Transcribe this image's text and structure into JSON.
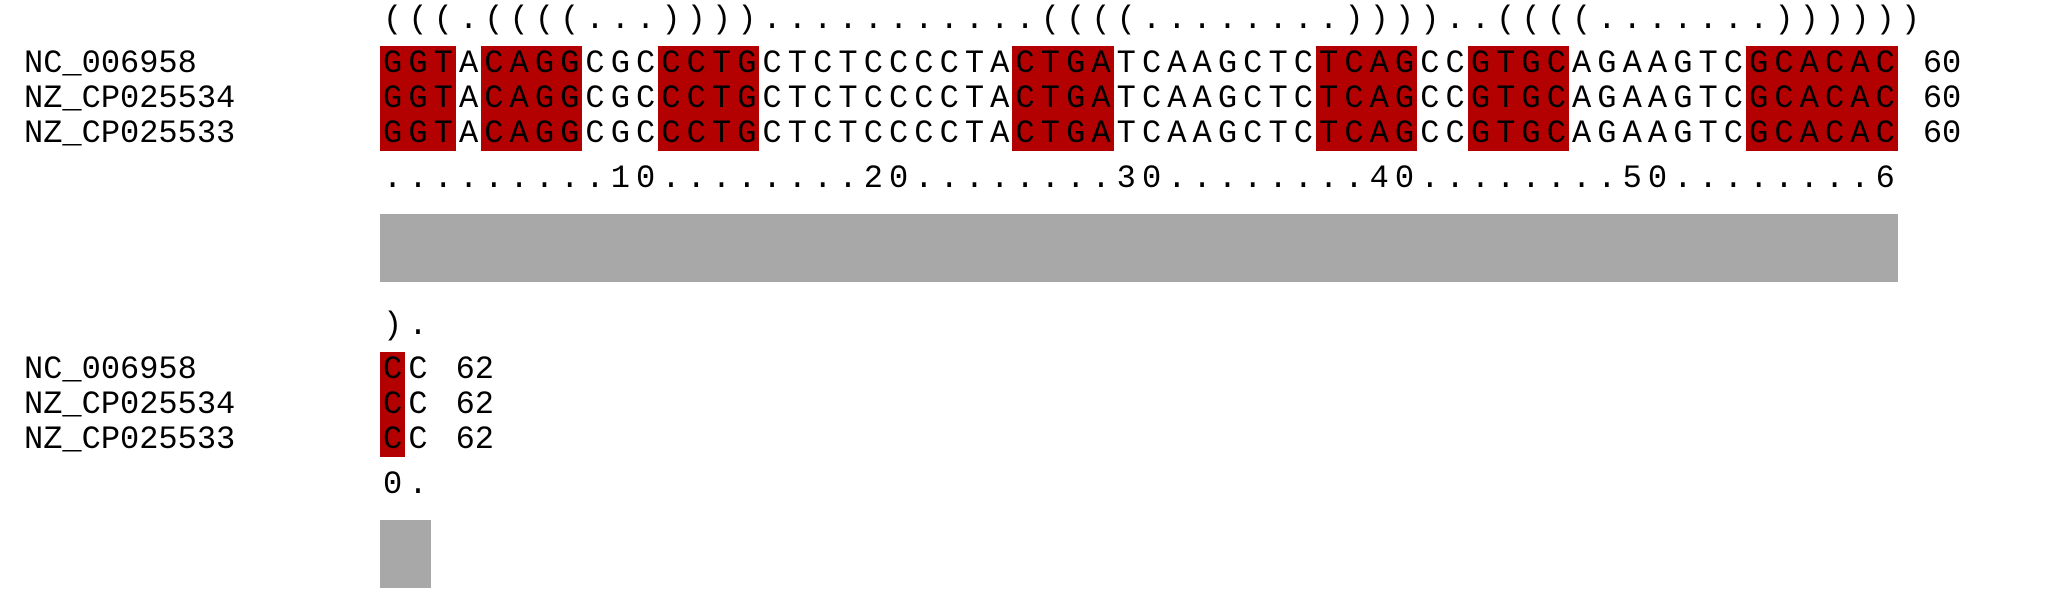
{
  "blocks": [
    {
      "structure": "(((.((((...))))...........((((........))))..((((.......))))))",
      "rows": [
        {
          "name": "NC_006958",
          "seq": "GGTACAGGCGCCCTGCTCTCCCCTACTGATCAAGCTCTCAGCCGTGCAGAAGTCGCACAC",
          "end": "60"
        },
        {
          "name": "NZ_CP025534",
          "seq": "GGTACAGGCGCCCTGCTCTCCCCTACTGATCAAGCTCTCAGCCGTGCAGAAGTCGCACAC",
          "end": "60"
        },
        {
          "name": "NZ_CP025533",
          "seq": "GGTACAGGCGCCCTGCTCTCCCCTACTGATCAAGCTCTCAGCCGTGCAGAAGTCGCACAC",
          "end": "60"
        }
      ],
      "ruler": ".........10........20........30........40........50........6",
      "highlight_ranges": [
        [
          0,
          3
        ],
        [
          4,
          8
        ],
        [
          11,
          15
        ],
        [
          25,
          29
        ],
        [
          37,
          41
        ],
        [
          43,
          47
        ],
        [
          54,
          60
        ]
      ],
      "conservation_length": 60
    },
    {
      "structure": ").",
      "rows": [
        {
          "name": "NC_006958",
          "seq": "CC",
          "end": "62"
        },
        {
          "name": "NZ_CP025534",
          "seq": "CC",
          "end": "62"
        },
        {
          "name": "NZ_CP025533",
          "seq": "CC",
          "end": "62"
        }
      ],
      "ruler": "0.",
      "highlight_ranges": [
        [
          0,
          1
        ]
      ],
      "conservation_length": 2
    }
  ],
  "colors": {
    "highlight": "#b30000",
    "conservation_bar": "#a8a8a8"
  }
}
